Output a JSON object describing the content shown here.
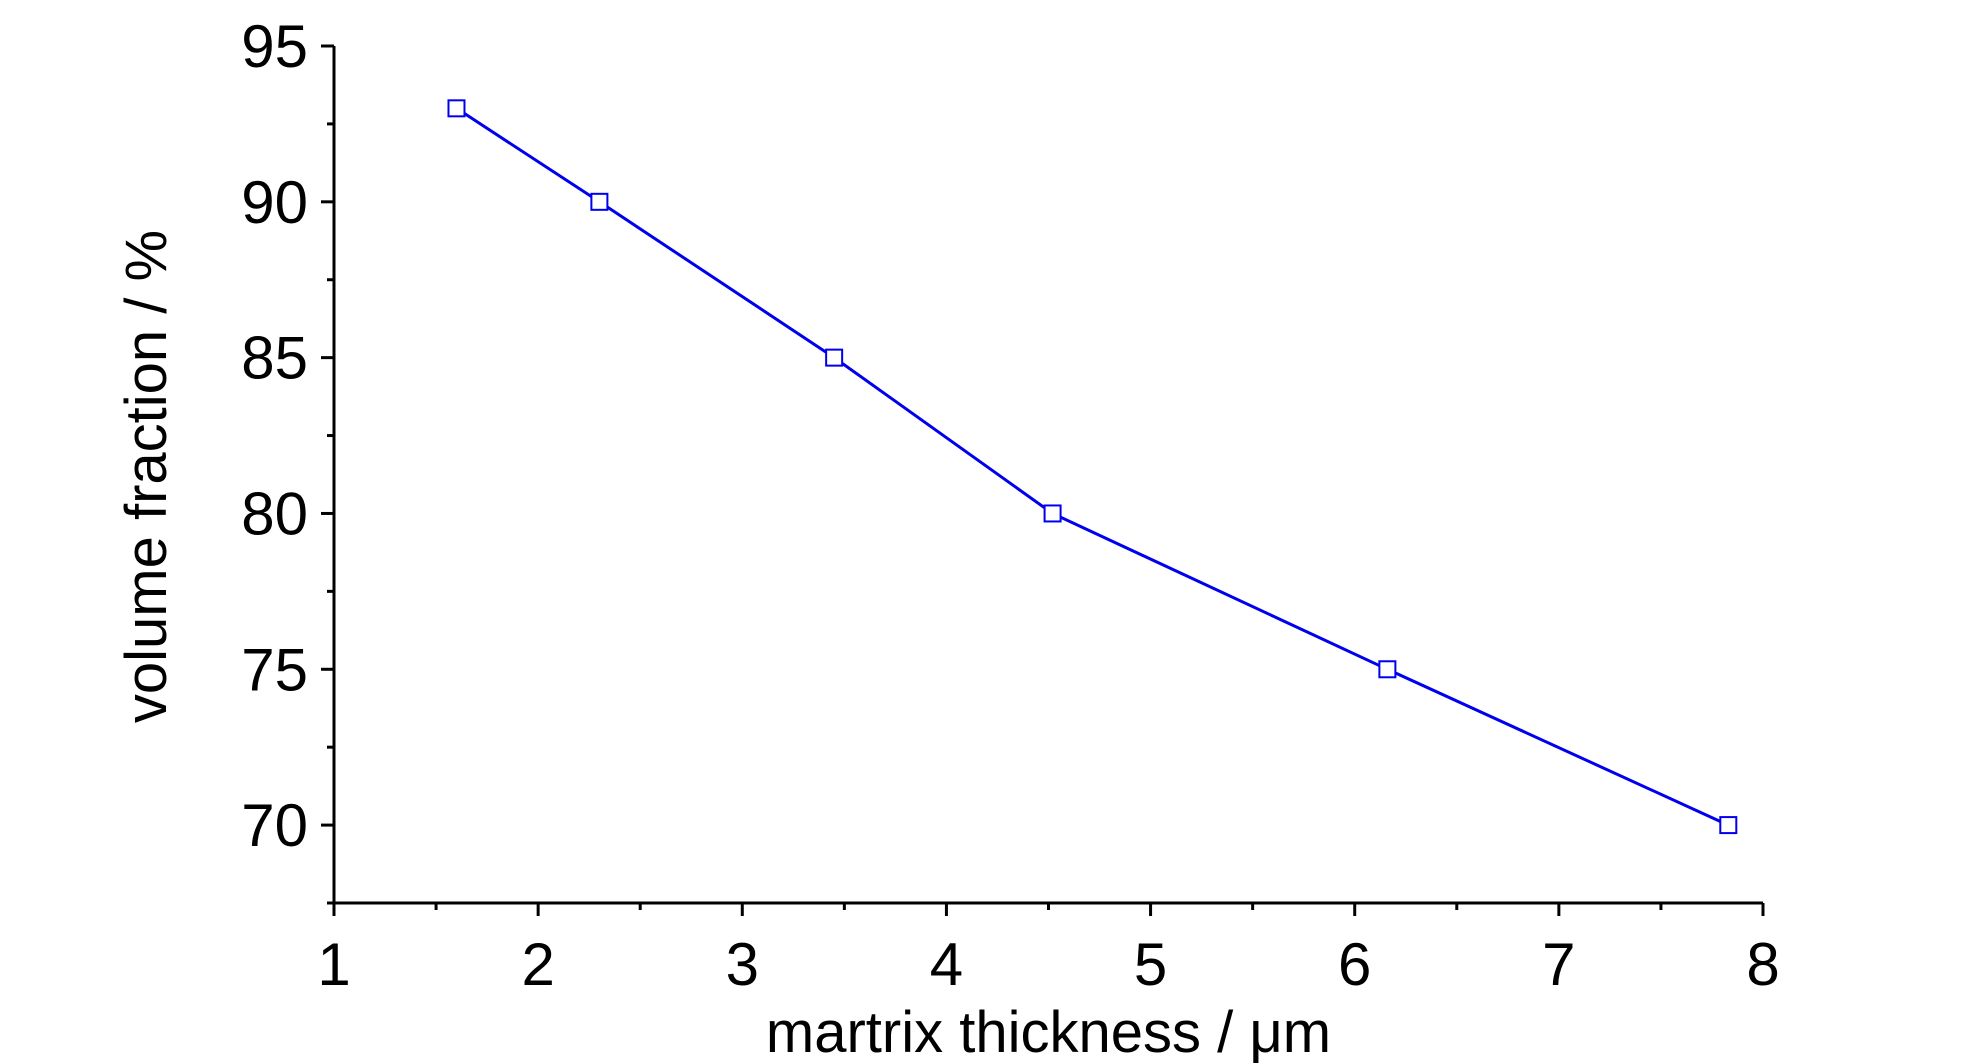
{
  "chart_data": {
    "type": "line",
    "title": "",
    "xlabel": "martrix thickness / μm",
    "ylabel": "volume fraction / %",
    "xlim": [
      1,
      8
    ],
    "ylim": [
      67.5,
      95
    ],
    "x_ticks": [
      1,
      2,
      3,
      4,
      5,
      6,
      7,
      8
    ],
    "y_ticks": [
      70,
      75,
      80,
      85,
      90,
      95
    ],
    "grid": false,
    "legend": "none",
    "series": [
      {
        "color": "#0000ee",
        "marker": "open-square",
        "x": [
          1.6,
          2.3,
          3.45,
          4.52,
          6.16,
          7.83
        ],
        "y": [
          93,
          90,
          85,
          80,
          75,
          70
        ]
      }
    ]
  }
}
